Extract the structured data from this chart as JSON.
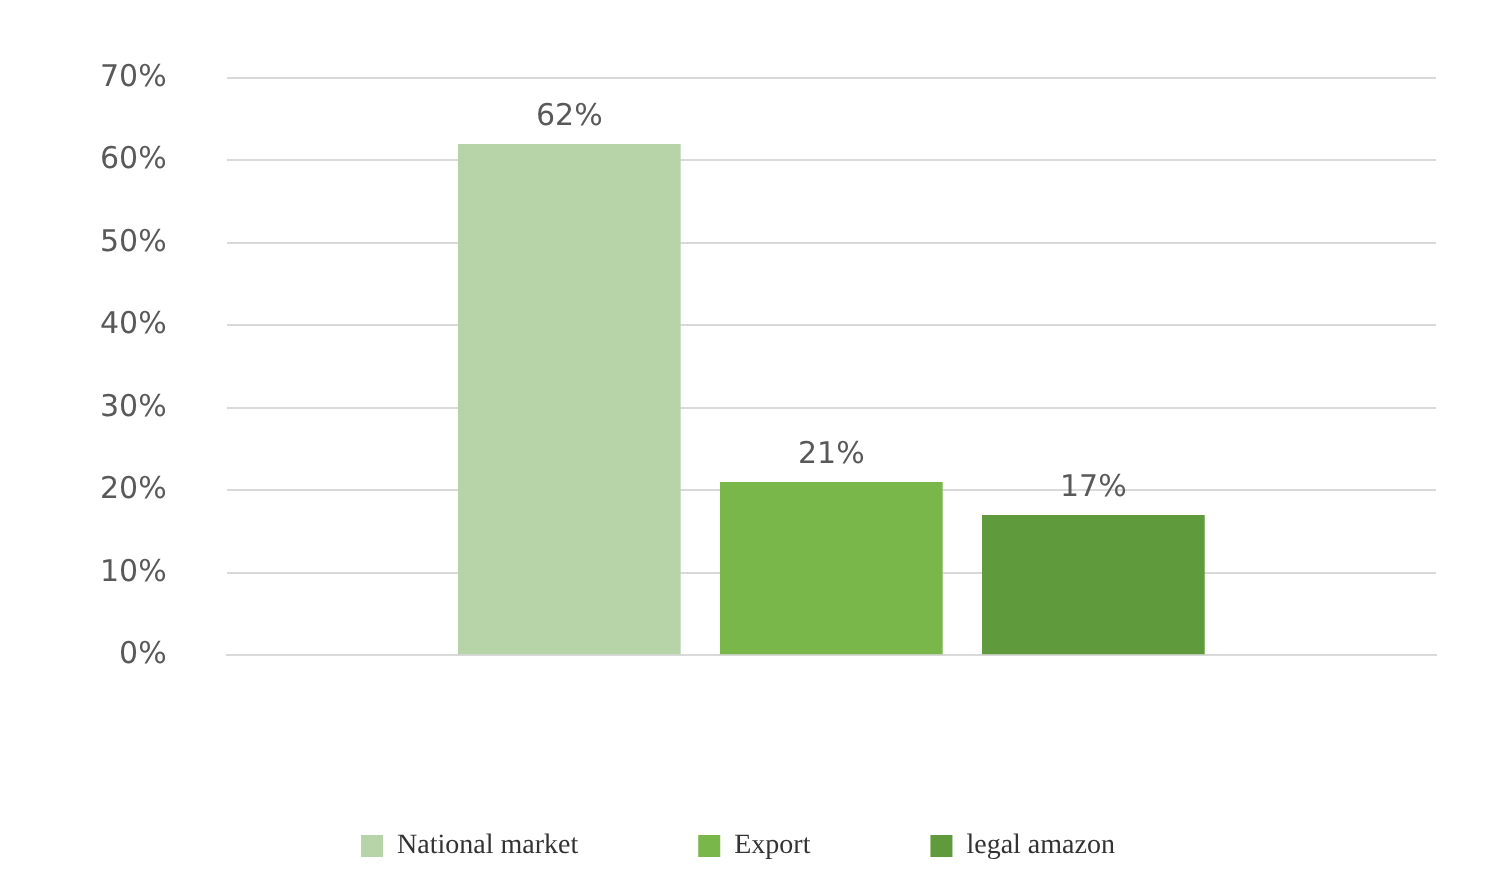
{
  "chart_data": {
    "type": "bar",
    "categories": [
      null
    ],
    "series": [
      {
        "name": "National market",
        "color": "#b6d4a7",
        "values": [
          62
        ]
      },
      {
        "name": "Export",
        "color": "#79b74a",
        "values": [
          21
        ]
      },
      {
        "name": "legal amazon",
        "color": "#5f9b3c",
        "values": [
          17
        ]
      }
    ],
    "ylim": [
      0,
      70
    ],
    "yticks": [
      {
        "value": 0,
        "label": "0%"
      },
      {
        "value": 10,
        "label": "10%"
      },
      {
        "value": 20,
        "label": "20%"
      },
      {
        "value": 30,
        "label": "30%"
      },
      {
        "value": 40,
        "label": "40%"
      },
      {
        "value": 50,
        "label": "50%"
      },
      {
        "value": 60,
        "label": "60%"
      },
      {
        "value": 70,
        "label": "70%"
      }
    ],
    "value_labels": [
      "62%",
      "21%",
      "17%"
    ],
    "grid": "y",
    "legend": "bottom"
  }
}
